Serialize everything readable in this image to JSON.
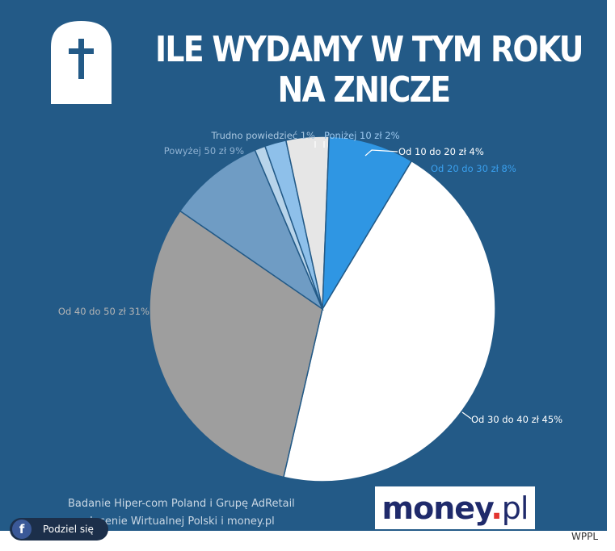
{
  "title_lines": [
    "ILE WYDAMY W TYM ROKU",
    "NA ZNICZE"
  ],
  "chart_data": {
    "type": "pie",
    "title": "ILE WYDAMY W TYM ROKU NA ZNICZE",
    "legend": "labels-outside",
    "slices": [
      {
        "label": "Od 30 do 40 zł 45%",
        "value": 45,
        "color": "#ffffff",
        "text_color": "#ffffff"
      },
      {
        "label": "Od 40 do 50 zł 31%",
        "value": 31,
        "color": "#9e9e9e",
        "text_color": "#b5b5b5"
      },
      {
        "label": "Powyżej 50 zł 9%",
        "value": 9,
        "color": "#6f9cc4",
        "text_color": "#8fb1d1"
      },
      {
        "label": "Trudno powiedzieć 1%",
        "value": 1,
        "color": "#b8d4ea",
        "text_color": "#a9c7e0"
      },
      {
        "label": "Poniżej 10 zł 2%",
        "value": 2,
        "color": "#8ec0ea",
        "text_color": "#9cc8ee"
      },
      {
        "label": "Od 10 do 20 zł 4%",
        "value": 4,
        "color": "#e6e6e6",
        "text_color": "#ffffff"
      },
      {
        "label": "Od 20 do 30 zł 8%",
        "value": 8,
        "color": "#2f96e3",
        "text_color": "#3aa0ee"
      }
    ]
  },
  "source_lines": [
    "Badanie Hiper-com Poland i Grupę AdRetail",
    "na zlecenie Wirtualnej Polski i  money.pl"
  ],
  "logo": {
    "main": "money",
    "dot": ".",
    "suffix": "pl"
  },
  "share": {
    "label": "Podziel się",
    "icon": "facebook-icon",
    "glyph": "f"
  },
  "credit": "WPPL"
}
